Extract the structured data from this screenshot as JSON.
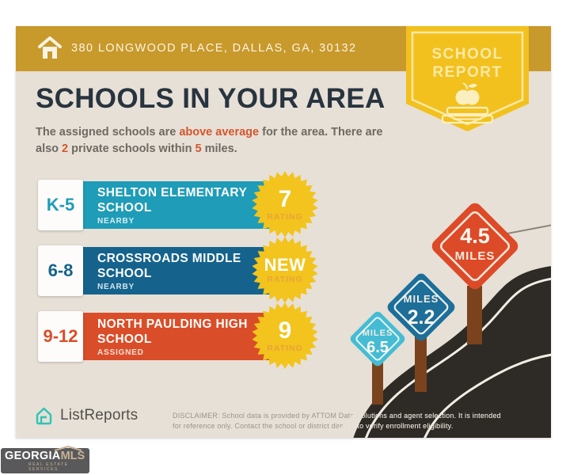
{
  "header": {
    "address": "380 LONGWOOD PLACE, DALLAS, GA, 30132"
  },
  "ribbon": {
    "line1": "SCHOOL",
    "line2": "REPORT"
  },
  "title": "SCHOOLS IN YOUR AREA",
  "subtitle": {
    "l1a": "The assigned schools are ",
    "hl1": "above average",
    "l1b": " for the area. There are",
    "l2a": "also ",
    "hl2": "2",
    "l2b": " private schools within ",
    "hl3": "5",
    "l2c": " miles."
  },
  "schools": [
    {
      "grades": "K-5",
      "name": "SHELTON ELEMENTARY SCHOOL",
      "status": "NEARBY",
      "rating": "7",
      "rating_label": "RATING",
      "color": "#1E9CB8"
    },
    {
      "grades": "6-8",
      "name": "CROSSROADS MIDDLE SCHOOL",
      "status": "NEARBY",
      "rating": "NEW",
      "rating_label": "RATING",
      "color": "#15638D"
    },
    {
      "grades": "9-12",
      "name": "NORTH PAULDING HIGH SCHOOL",
      "status": "ASSIGNED",
      "rating": "9",
      "rating_label": "RATING",
      "color": "#D94E29"
    }
  ],
  "distance_signs": [
    {
      "label": "MILES",
      "value": "6.5",
      "color": "#45BCD4"
    },
    {
      "label": "MILES",
      "value": "2.2",
      "color": "#1D6E99"
    },
    {
      "label": "MILES",
      "value": "4.5",
      "color": "#DD4A28"
    }
  ],
  "footer": {
    "brand": "ListReports",
    "disclaimer": "DISCLAIMER: School data is provided by ATTOM Data Solutions and agent selection. It is intended for reference only. Contact the school or district directly to verify enrollment eligibility."
  },
  "watermark": {
    "name_a": "GEORGIA",
    "name_b": "MLS",
    "tagline": "REAL ESTATE SERVICES"
  },
  "colors": {
    "header_gold": "#C8992B",
    "ribbon_yellow": "#F2C11E",
    "star_yellow": "#F2C41D",
    "road_dark": "#2E2A26",
    "accent_orange": "#D4552D",
    "card_beige": "#E7E0D6",
    "post_brown": "#7B431D",
    "listreports_teal": "#2EC4B6"
  }
}
